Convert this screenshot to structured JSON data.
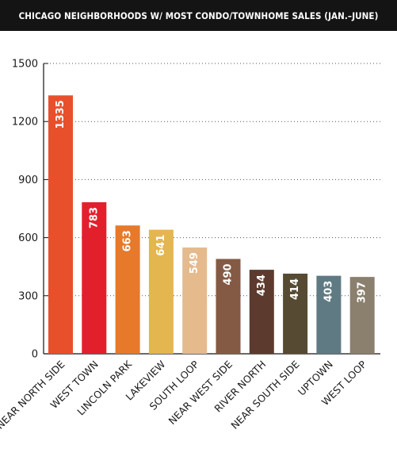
{
  "chart_data": {
    "type": "bar",
    "title": "CHICAGO NEIGHBORHOODS W/ MOST CONDO/TOWNHOME SALES (JAN.–JUNE)",
    "categories": [
      "NEAR NORTH SIDE",
      "WEST TOWN",
      "LINCOLN PARK",
      "LAKEVIEW",
      "SOUTH LOOP",
      "NEAR WEST SIDE",
      "RIVER NORTH",
      "NEAR SOUTH SIDE",
      "UPTOWN",
      "WEST LOOP"
    ],
    "values": [
      1335,
      783,
      663,
      641,
      549,
      490,
      434,
      414,
      403,
      397
    ],
    "value_labels": [
      "1335",
      "783",
      "663",
      "641",
      "549",
      "490",
      "434",
      "414",
      "403",
      "397"
    ],
    "colors": [
      "#e8502b",
      "#e2202c",
      "#e7792a",
      "#e3b64f",
      "#e5ba8c",
      "#855a44",
      "#5c3b2e",
      "#564b32",
      "#5f7a82",
      "#8b7f6e"
    ],
    "yticks": [
      0,
      300,
      600,
      900,
      1200,
      1500
    ],
    "ytick_labels": [
      "0",
      "300",
      "600",
      "900",
      "1200",
      "1500"
    ],
    "ylim": [
      0,
      1500
    ],
    "xlabel": "",
    "ylabel": "",
    "grid": true
  }
}
